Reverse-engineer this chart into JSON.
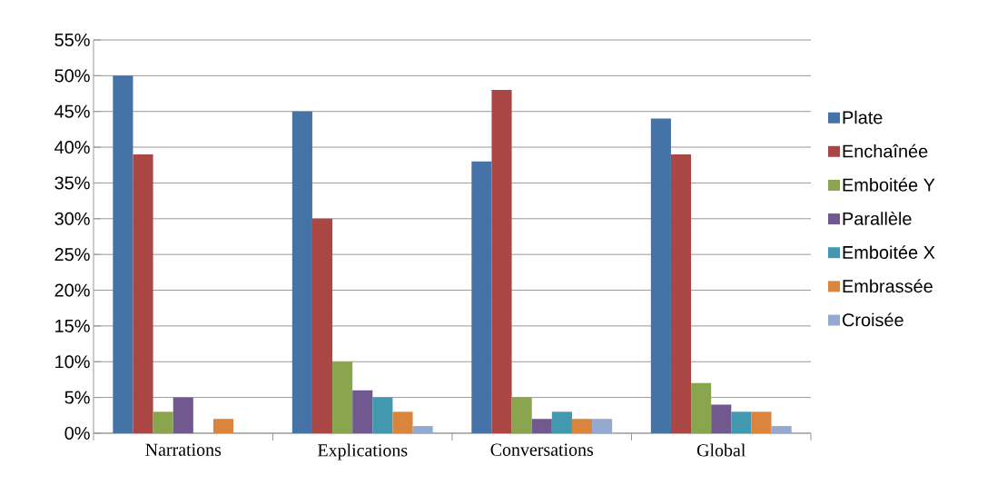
{
  "chart_data": {
    "type": "bar",
    "categories": [
      "Narrations",
      "Explications",
      "Conversations",
      "Global"
    ],
    "series": [
      {
        "name": "Plate",
        "color": "#4572a7",
        "values": [
          50,
          45,
          38,
          44
        ]
      },
      {
        "name": "Enchaînée",
        "color": "#aa4643",
        "values": [
          39,
          30,
          48,
          39
        ]
      },
      {
        "name": "Emboitée Y",
        "color": "#89a54e",
        "values": [
          3,
          10,
          5,
          7
        ]
      },
      {
        "name": "Parallèle",
        "color": "#71588f",
        "values": [
          5,
          6,
          2,
          4
        ]
      },
      {
        "name": "Emboitée X",
        "color": "#4198af",
        "values": [
          0,
          5,
          3,
          3
        ]
      },
      {
        "name": "Embrassée",
        "color": "#db843d",
        "values": [
          2,
          3,
          2,
          3
        ]
      },
      {
        "name": "Croisée",
        "color": "#93a9cf",
        "values": [
          0,
          1,
          2,
          1
        ]
      }
    ],
    "ylim": [
      0,
      55
    ],
    "yticks": [
      {
        "value": 0,
        "label": "0%"
      },
      {
        "value": 5,
        "label": "5%"
      },
      {
        "value": 10,
        "label": "10%"
      },
      {
        "value": 15,
        "label": "15%"
      },
      {
        "value": 20,
        "label": "20%"
      },
      {
        "value": 25,
        "label": "25%"
      },
      {
        "value": 30,
        "label": "30%"
      },
      {
        "value": 35,
        "label": "35%"
      },
      {
        "value": 40,
        "label": "40%"
      },
      {
        "value": 45,
        "label": "45%"
      },
      {
        "value": 50,
        "label": "50%"
      },
      {
        "value": 55,
        "label": "55%"
      }
    ],
    "grid": "y",
    "legend": "right"
  }
}
